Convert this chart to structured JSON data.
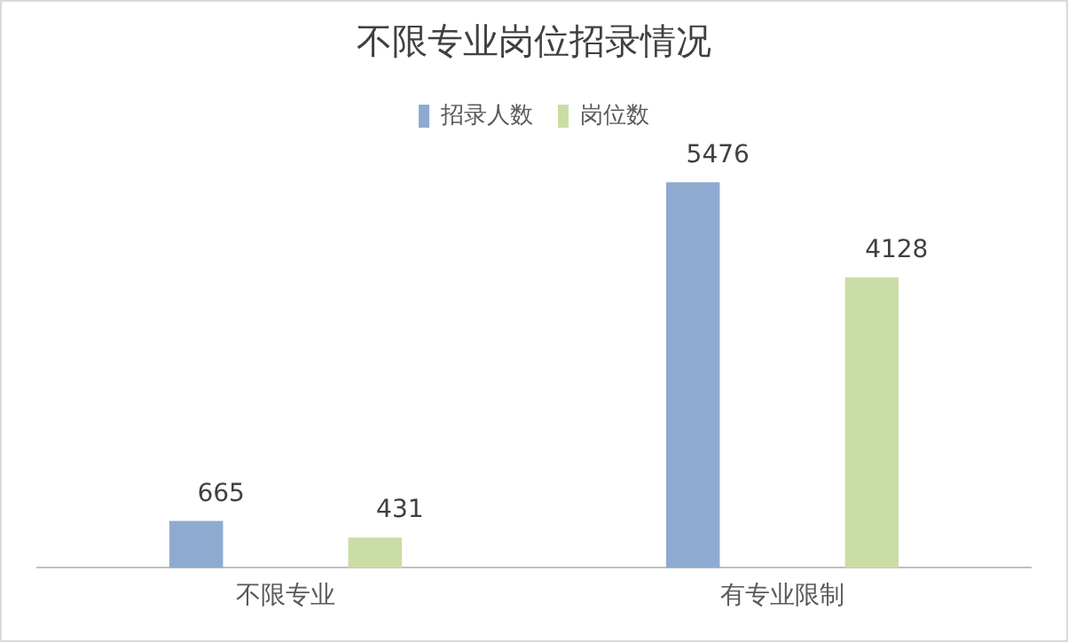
{
  "chart_data": {
    "type": "bar",
    "title": "不限专业岗位招录情况",
    "categories": [
      "不限专业",
      "有专业限制"
    ],
    "series": [
      {
        "name": "招录人数",
        "color": "#8faad0",
        "values": [
          665,
          5476
        ]
      },
      {
        "name": "岗位数",
        "color": "#cadda6",
        "values": [
          431,
          4128
        ]
      }
    ],
    "data_labels": true,
    "legend": "top",
    "grid": false
  }
}
